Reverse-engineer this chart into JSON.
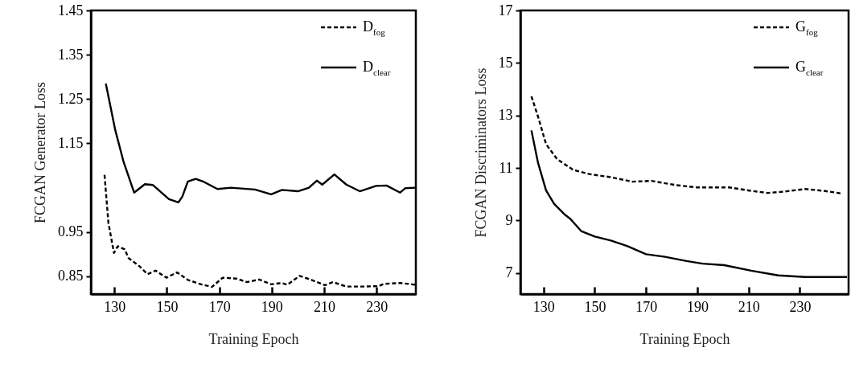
{
  "chart_data": [
    {
      "type": "line",
      "xlabel": "Training Epoch",
      "ylabel": "FCGAN Generator Loss",
      "xlim": [
        121,
        245
      ],
      "xticks": [
        130,
        150,
        170,
        190,
        210,
        230
      ],
      "ylim": [
        0.81,
        1.45
      ],
      "yticks": [
        0.85,
        0.95,
        1.15,
        1.25,
        1.35,
        1.45
      ],
      "legend": "top right",
      "series": [
        {
          "name": "D$_{fog}$",
          "color": "#000000",
          "line_style": "dashed",
          "x": [
            126.2,
            127.7,
            129.8,
            131.3,
            133.9,
            135.4,
            139.5,
            142.6,
            145.7,
            149.8,
            153.9,
            158,
            163.1,
            167.2,
            171.3,
            176.5,
            180.6,
            185.2,
            189.8,
            193.9,
            196,
            200.6,
            205.2,
            210.3,
            213.4,
            218.5,
            225.6,
            230.8,
            232.8,
            239,
            245
          ],
          "values": [
            1.079,
            0.97,
            0.903,
            0.918,
            0.911,
            0.891,
            0.873,
            0.855,
            0.863,
            0.847,
            0.859,
            0.842,
            0.832,
            0.826,
            0.847,
            0.845,
            0.837,
            0.843,
            0.832,
            0.835,
            0.831,
            0.851,
            0.842,
            0.83,
            0.837,
            0.827,
            0.827,
            0.828,
            0.833,
            0.835,
            0.831
          ]
        },
        {
          "name": "D$_{clear}$",
          "color": "#000000",
          "line_style": "solid",
          "x": [
            126.7,
            130.3,
            133.4,
            137.5,
            141.6,
            144.7,
            150.8,
            154.4,
            155.9,
            158,
            161,
            164.2,
            169.3,
            174.4,
            183.6,
            189.8,
            193.9,
            200,
            204.2,
            207.2,
            209.3,
            213.9,
            218.5,
            223.6,
            229.8,
            233.8,
            239,
            241,
            245
          ],
          "values": [
            1.285,
            1.18,
            1.11,
            1.039,
            1.058,
            1.056,
            1.024,
            1.017,
            1.03,
            1.064,
            1.07,
            1.063,
            1.047,
            1.05,
            1.046,
            1.035,
            1.045,
            1.042,
            1.05,
            1.066,
            1.057,
            1.08,
            1.057,
            1.042,
            1.054,
            1.055,
            1.039,
            1.049,
            1.05
          ]
        }
      ]
    },
    {
      "type": "line",
      "xlabel": "Training Epoch",
      "ylabel": "FCGAN Discriminators Loss",
      "xlim": [
        121,
        249
      ],
      "xticks": [
        130,
        150,
        170,
        190,
        210,
        230
      ],
      "ylim": [
        6.2,
        17
      ],
      "yticks": [
        7,
        9,
        11,
        13,
        15,
        17
      ],
      "legend": "top right",
      "series": [
        {
          "name": "G$_{fog}$",
          "color": "#000000",
          "line_style": "dashed",
          "x": [
            125.3,
            127.9,
            131,
            135.3,
            141.6,
            147.9,
            156.3,
            164.7,
            172.1,
            181.6,
            190,
            202.6,
            211,
            217.4,
            222.6,
            232.1,
            239.5,
            246.3
          ],
          "values": [
            13.73,
            12.95,
            11.91,
            11.34,
            10.93,
            10.77,
            10.65,
            10.48,
            10.51,
            10.35,
            10.26,
            10.26,
            10.13,
            10.05,
            10.09,
            10.2,
            10.13,
            10.03
          ]
        },
        {
          "name": "G$_{clear}$",
          "color": "#000000",
          "line_style": "solid",
          "x": [
            125.3,
            127.9,
            131,
            134.2,
            138.4,
            140.5,
            144.7,
            150,
            156.3,
            162.6,
            170,
            177.4,
            185.8,
            192.1,
            200.5,
            211,
            221.6,
            232.1,
            248.4
          ],
          "values": [
            12.43,
            11.19,
            10.15,
            9.63,
            9.22,
            9.06,
            8.6,
            8.39,
            8.24,
            8.03,
            7.72,
            7.62,
            7.46,
            7.36,
            7.3,
            7.09,
            6.91,
            6.85,
            6.85
          ]
        }
      ]
    }
  ]
}
